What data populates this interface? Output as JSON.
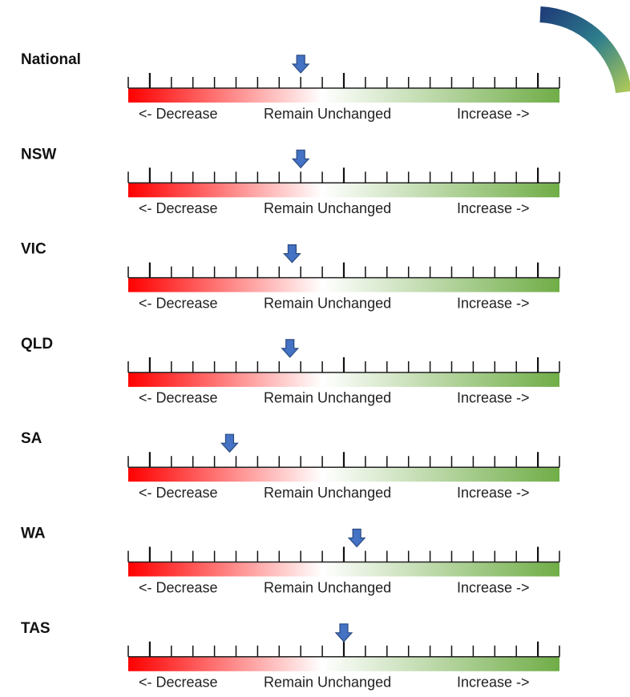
{
  "chart_data": {
    "type": "gauge",
    "categories": [
      "National",
      "NSW",
      "VIC",
      "QLD",
      "SA",
      "WA",
      "TAS"
    ],
    "values": [
      -2,
      -2,
      -2.4,
      -2.5,
      -5.3,
      0.6,
      0
    ],
    "xlim": [
      -10,
      10
    ],
    "xticks": [
      -10,
      -9,
      -8,
      -7,
      -6,
      -5,
      -4,
      -3,
      -2,
      -1,
      0,
      1,
      2,
      3,
      4,
      5,
      6,
      7,
      8,
      9,
      10
    ],
    "scale_labels": [
      "<- Decrease",
      "Remain Unchanged",
      "Increase ->"
    ],
    "color": "#4472c4",
    "gradient": [
      "#ff0000",
      "#ffffff",
      "#70ad47"
    ]
  }
}
